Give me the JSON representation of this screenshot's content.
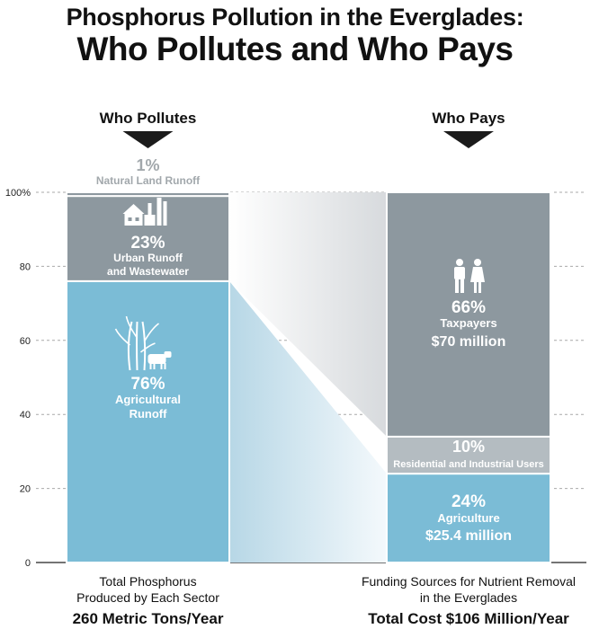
{
  "title": "Phosphorus Pollution in the Everglades:",
  "subtitle": "Who Pollutes and Who Pays",
  "colors": {
    "agriculture": "#7bbcd6",
    "urban": "#8d989f",
    "natural": "#8d989f",
    "taxpayers": "#8d989f",
    "residential": "#b4bcc1",
    "white_text": "#ffffff",
    "natural_text": "#a2a8ac"
  },
  "chart_data": {
    "type": "bar",
    "stacked": true,
    "ylim": [
      0,
      100
    ],
    "yticks": [
      "0",
      "20",
      "40",
      "60",
      "80",
      "100%"
    ],
    "ytick_values": [
      0,
      20,
      40,
      60,
      80,
      100
    ],
    "grid": true,
    "categories": [
      "Who Pollutes",
      "Who Pays"
    ],
    "bars": [
      {
        "header": "Who Pollutes",
        "caption_lines": [
          "Total Phosphorus",
          "Produced by Each Sector"
        ],
        "total": "260 Metric Tons/Year",
        "segments": [
          {
            "percent": "76%",
            "value": 76,
            "label_lines": [
              "Agricultural",
              "Runoff"
            ],
            "color_key": "agriculture",
            "icon": "sugarcane-cow-icon"
          },
          {
            "percent": "23%",
            "value": 23,
            "label_lines": [
              "Urban Runoff",
              "and Wastewater"
            ],
            "color_key": "urban",
            "icon": "house-factory-icon"
          },
          {
            "percent": "1%",
            "value": 1,
            "label_lines": [
              "Natural Land Runoff"
            ],
            "color_key": "natural",
            "icon": ""
          }
        ]
      },
      {
        "header": "Who Pays",
        "caption_lines": [
          "Funding Sources for Nutrient Removal",
          "in the Everglades"
        ],
        "total": "Total Cost $106 Million/Year",
        "segments": [
          {
            "percent": "24%",
            "value": 24,
            "label_lines": [
              "Agriculture",
              "$25.4 million"
            ],
            "color_key": "agriculture",
            "icon": ""
          },
          {
            "percent": "10%",
            "value": 10,
            "label_lines": [
              "Residential and Industrial Users"
            ],
            "color_key": "residential",
            "icon": ""
          },
          {
            "percent": "66%",
            "value": 66,
            "label_lines": [
              "Taxpayers",
              "$70 million"
            ],
            "color_key": "taxpayers",
            "icon": "people-icon"
          }
        ]
      }
    ]
  }
}
